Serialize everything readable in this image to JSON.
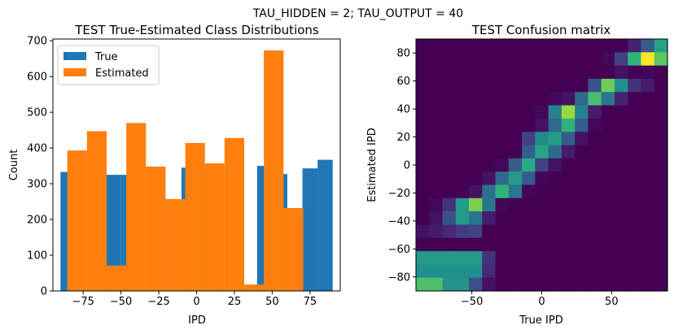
{
  "suptitle": "TAU_HIDDEN = 2; TAU_OUTPUT = 40",
  "colors": {
    "true": "#1f77b4",
    "estimated": "#ff7f0e"
  },
  "chart_data": [
    {
      "type": "bar",
      "title": "TEST True-Estimated Class Distributions",
      "xlabel": "IPD",
      "ylabel": "Count",
      "xlim": [
        -95,
        95
      ],
      "ylim": [
        0,
        705
      ],
      "xticks": [
        -75,
        -50,
        -25,
        0,
        25,
        50,
        75
      ],
      "xtick_labels": [
        "−75",
        "−50",
        "−25",
        "0",
        "25",
        "50",
        "75"
      ],
      "yticks": [
        0,
        100,
        200,
        300,
        400,
        500,
        600,
        700
      ],
      "ytick_labels": [
        "0",
        "100",
        "200",
        "300",
        "400",
        "500",
        "600",
        "700"
      ],
      "legend": [
        "True",
        "Estimated"
      ],
      "legend_position": "upper-left",
      "series": [
        {
          "name": "True",
          "bin_edges": [
            -90,
            -80,
            -70,
            -60,
            -50,
            -40,
            -30,
            -20,
            -10,
            0,
            10,
            20,
            30,
            40,
            50,
            60,
            70,
            80,
            90
          ],
          "values": [
            333,
            0,
            0,
            325,
            325,
            0,
            0,
            0,
            345,
            345,
            0,
            0,
            0,
            350,
            327,
            0,
            343,
            367
          ]
        },
        {
          "name": "Estimated",
          "bin_edges": [
            -85.5,
            -72.5,
            -59.5,
            -46.5,
            -33.5,
            -20.5,
            -7.5,
            5.5,
            18.5,
            31.5,
            44.5,
            57.5,
            70.5,
            83.5
          ],
          "values": [
            393,
            447,
            71,
            470,
            348,
            257,
            414,
            357,
            428,
            18,
            673,
            232,
            0
          ]
        }
      ]
    },
    {
      "type": "heatmap",
      "title": "TEST Confusion matrix",
      "xlabel": "True IPD",
      "ylabel": "Estimated IPD",
      "xlim": [
        -90,
        90
      ],
      "ylim": [
        -90,
        90
      ],
      "xticks": [
        -50,
        0,
        50
      ],
      "xtick_labels": [
        "−50",
        "0",
        "50"
      ],
      "yticks": [
        -80,
        -60,
        -40,
        -20,
        0,
        20,
        40,
        60,
        80
      ],
      "ytick_labels": [
        "−80",
        "−60",
        "−40",
        "−20",
        "0",
        "20",
        "40",
        "60",
        "80"
      ],
      "colormap": "viridis",
      "rows_top_to_bottom": [
        [
          0.0,
          0.0,
          0.0,
          0.0,
          0.0,
          0.0,
          0.0,
          0.0,
          0.0,
          0.0,
          0.0,
          0.0,
          0.0,
          0.0,
          0.0,
          0.0,
          0.1,
          0.3,
          0.58
        ],
        [
          0.0,
          0.0,
          0.0,
          0.0,
          0.0,
          0.0,
          0.0,
          0.0,
          0.0,
          0.0,
          0.0,
          0.0,
          0.0,
          0.0,
          0.02,
          0.2,
          0.65,
          1.0,
          0.75
        ],
        [
          0.0,
          0.0,
          0.0,
          0.0,
          0.0,
          0.0,
          0.0,
          0.0,
          0.0,
          0.0,
          0.0,
          0.0,
          0.0,
          0.0,
          0.0,
          0.05,
          0.0,
          0.02,
          0.0
        ],
        [
          0.0,
          0.0,
          0.0,
          0.0,
          0.0,
          0.0,
          0.0,
          0.0,
          0.0,
          0.0,
          0.0,
          0.0,
          0.0,
          0.25,
          0.78,
          0.5,
          0.15,
          0.08,
          0.0
        ],
        [
          0.0,
          0.0,
          0.0,
          0.0,
          0.0,
          0.0,
          0.0,
          0.0,
          0.0,
          0.0,
          0.02,
          0.05,
          0.35,
          0.7,
          0.4,
          0.1,
          0.0,
          0.0,
          0.0
        ],
        [
          0.0,
          0.0,
          0.0,
          0.0,
          0.0,
          0.0,
          0.0,
          0.0,
          0.0,
          0.02,
          0.45,
          0.85,
          0.45,
          0.08,
          0.0,
          0.0,
          0.0,
          0.0,
          0.0
        ],
        [
          0.0,
          0.0,
          0.0,
          0.0,
          0.0,
          0.0,
          0.0,
          0.0,
          0.0,
          0.05,
          0.35,
          0.65,
          0.3,
          0.02,
          0.0,
          0.0,
          0.0,
          0.0,
          0.0
        ],
        [
          0.0,
          0.0,
          0.0,
          0.0,
          0.0,
          0.0,
          0.0,
          0.0,
          0.2,
          0.48,
          0.55,
          0.3,
          0.05,
          0.0,
          0.0,
          0.0,
          0.0,
          0.0,
          0.0
        ],
        [
          0.0,
          0.0,
          0.0,
          0.0,
          0.0,
          0.0,
          0.0,
          0.0,
          0.3,
          0.6,
          0.35,
          0.08,
          0.0,
          0.0,
          0.0,
          0.0,
          0.0,
          0.0,
          0.0
        ],
        [
          0.0,
          0.0,
          0.0,
          0.0,
          0.0,
          0.0,
          0.02,
          0.3,
          0.62,
          0.2,
          0.05,
          0.0,
          0.0,
          0.0,
          0.0,
          0.0,
          0.0,
          0.0,
          0.0
        ],
        [
          0.0,
          0.0,
          0.0,
          0.0,
          0.0,
          0.05,
          0.35,
          0.55,
          0.3,
          0.02,
          0.0,
          0.0,
          0.0,
          0.0,
          0.0,
          0.0,
          0.0,
          0.0,
          0.0
        ],
        [
          0.0,
          0.0,
          0.0,
          0.0,
          0.05,
          0.38,
          0.65,
          0.4,
          0.02,
          0.0,
          0.0,
          0.0,
          0.0,
          0.0,
          0.0,
          0.0,
          0.0,
          0.0,
          0.0
        ],
        [
          0.0,
          0.02,
          0.15,
          0.55,
          0.8,
          0.4,
          0.02,
          0.0,
          0.0,
          0.0,
          0.0,
          0.0,
          0.0,
          0.0,
          0.0,
          0.0,
          0.0,
          0.0,
          0.0
        ],
        [
          0.0,
          0.05,
          0.25,
          0.55,
          0.4,
          0.08,
          0.0,
          0.0,
          0.0,
          0.0,
          0.0,
          0.0,
          0.0,
          0.0,
          0.0,
          0.0,
          0.0,
          0.0,
          0.0
        ],
        [
          0.05,
          0.08,
          0.12,
          0.18,
          0.2,
          0.0,
          0.0,
          0.0,
          0.0,
          0.0,
          0.0,
          0.0,
          0.0,
          0.0,
          0.0,
          0.0,
          0.0,
          0.0,
          0.0
        ],
        [
          0.0,
          0.0,
          0.0,
          0.0,
          0.0,
          0.0,
          0.0,
          0.0,
          0.0,
          0.0,
          0.0,
          0.0,
          0.0,
          0.0,
          0.0,
          0.0,
          0.0,
          0.0,
          0.0
        ],
        [
          0.55,
          0.55,
          0.55,
          0.55,
          0.55,
          0.15,
          0.0,
          0.0,
          0.0,
          0.0,
          0.0,
          0.0,
          0.0,
          0.0,
          0.0,
          0.0,
          0.0,
          0.0,
          0.0
        ],
        [
          0.5,
          0.5,
          0.5,
          0.5,
          0.5,
          0.12,
          0.0,
          0.0,
          0.0,
          0.0,
          0.0,
          0.0,
          0.0,
          0.0,
          0.0,
          0.0,
          0.0,
          0.0,
          0.0
        ],
        [
          0.72,
          0.72,
          0.52,
          0.52,
          0.25,
          0.05,
          0.0,
          0.0,
          0.0,
          0.0,
          0.0,
          0.0,
          0.0,
          0.0,
          0.0,
          0.0,
          0.0,
          0.0,
          0.0
        ]
      ]
    }
  ]
}
